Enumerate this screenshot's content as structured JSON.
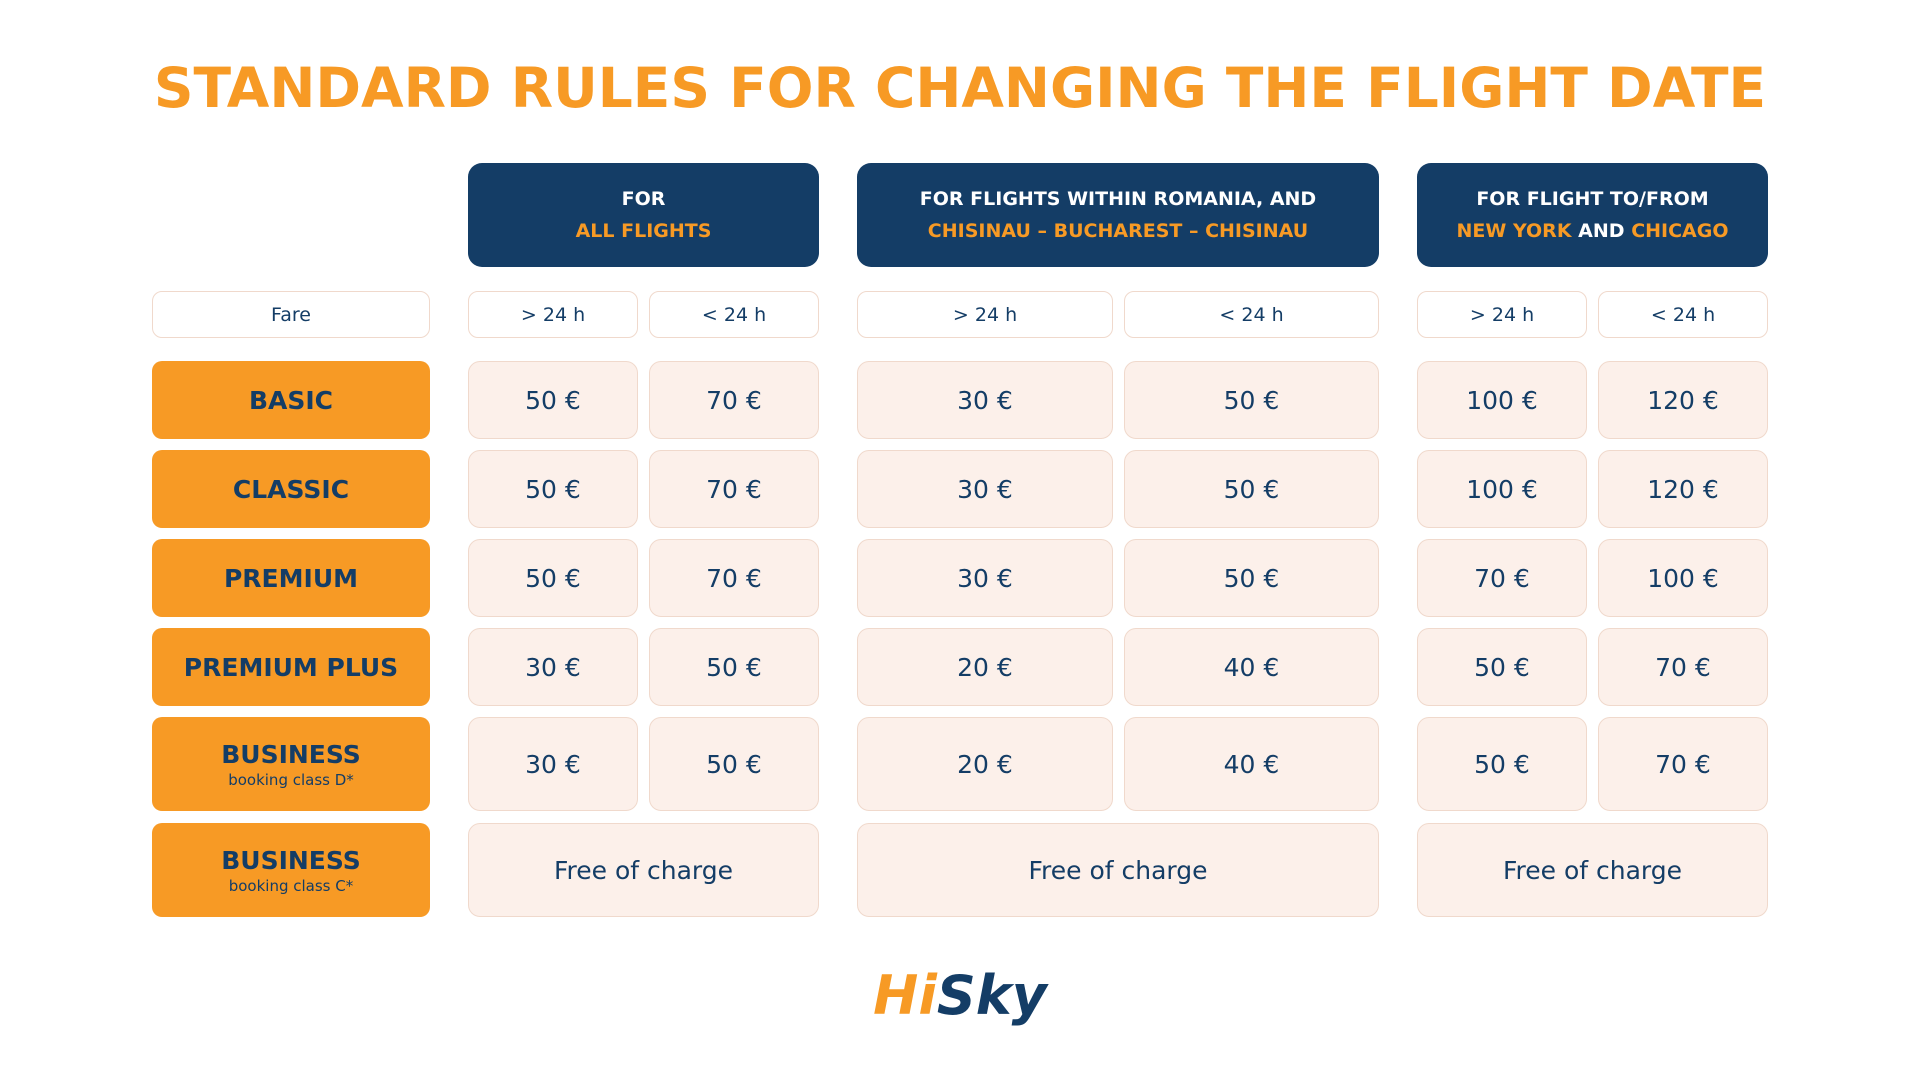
{
  "title": "STANDARD RULES FOR CHANGING THE FLIGHT DATE",
  "headers": [
    {
      "line1": [
        "FOR"
      ],
      "line2": [
        "ALL FLIGHTS"
      ]
    },
    {
      "line1": [
        "FOR FLIGHTS WITHIN ROMANIA, AND"
      ],
      "line2": [
        "CHISINAU – BUCHAREST – CHISINAU"
      ]
    },
    {
      "line1": [
        "FOR FLIGHT TO/FROM"
      ],
      "line2": [
        "NEW YORK",
        "AND",
        "CHICAGO"
      ]
    }
  ],
  "fare_label": "Fare",
  "timings": [
    "> 24 h",
    "< 24 h",
    "> 24 h",
    "< 24 h",
    "> 24 h",
    "< 24 h"
  ],
  "rows": [
    {
      "fare": "BASIC",
      "prices": [
        "50 €",
        "70 €",
        "30 €",
        "50 €",
        "100 €",
        "120 €"
      ]
    },
    {
      "fare": "CLASSIC",
      "prices": [
        "50 €",
        "70 €",
        "30 €",
        "50 €",
        "100 €",
        "120 €"
      ]
    },
    {
      "fare": "PREMIUM",
      "prices": [
        "50 €",
        "70 €",
        "30 €",
        "50 €",
        "70 €",
        "100 €"
      ]
    },
    {
      "fare": "PREMIUM PLUS",
      "prices": [
        "30 €",
        "50 €",
        "20 €",
        "40 €",
        "50 €",
        "70 €"
      ]
    },
    {
      "fare": "BUSINESS",
      "note": "booking class D*",
      "prices": [
        "30 €",
        "50 €",
        "20 €",
        "40 €",
        "50 €",
        "70 €"
      ]
    },
    {
      "fare": "BUSINESS",
      "note": "booking class C*",
      "prices": [
        "Free of charge",
        "Free of charge",
        "Free of charge"
      ]
    }
  ],
  "logo": {
    "hi": "Hi",
    "sky": "Sky"
  }
}
